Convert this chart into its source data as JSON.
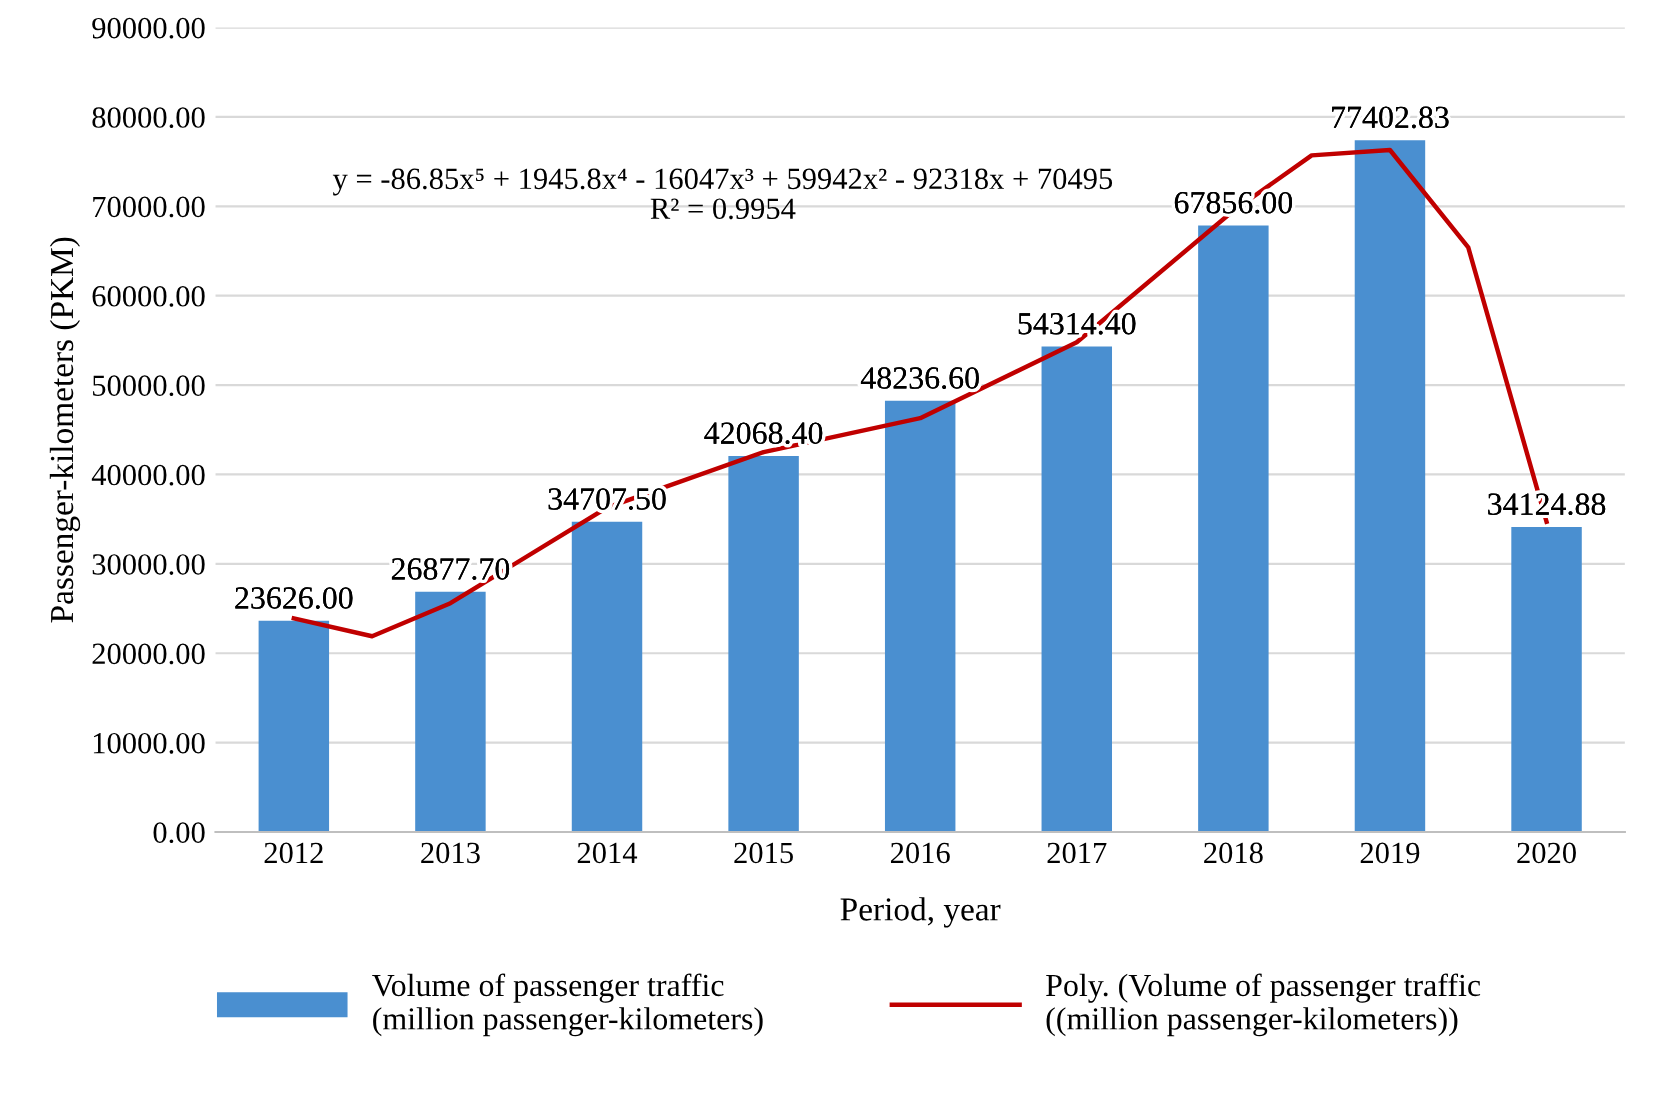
{
  "chart_data": {
    "type": "bar",
    "xlabel": "Period, year",
    "ylabel": "Passenger-kilometers (PKM)",
    "x": [
      2012,
      2013,
      2014,
      2015,
      2016,
      2017,
      2018,
      2019,
      2020
    ],
    "xlim": [
      2011.5,
      2020.5
    ],
    "xticks": [
      2012,
      2013,
      2014,
      2015,
      2016,
      2017,
      2018,
      2019,
      2020
    ],
    "ylim": [
      0,
      90000
    ],
    "yticks": [
      {
        "value": 0,
        "label": "0.00"
      },
      {
        "value": 10000,
        "label": "10000.00"
      },
      {
        "value": 20000,
        "label": "20000.00"
      },
      {
        "value": 30000,
        "label": "30000.00"
      },
      {
        "value": 40000,
        "label": "40000.00"
      },
      {
        "value": 50000,
        "label": "50000.00"
      },
      {
        "value": 60000,
        "label": "60000.00"
      },
      {
        "value": 70000,
        "label": "70000.00"
      },
      {
        "value": 80000,
        "label": "80000.00"
      },
      {
        "value": 90000,
        "label": "90000.00"
      }
    ],
    "grid": "y",
    "legend": "bottom",
    "series": [
      {
        "name": "Volume of passenger traffic\n(million passenger-kilometers)",
        "color": "#4a8fd0",
        "values": [
          23626.0,
          26877.7,
          34707.5,
          42068.4,
          48236.6,
          54314.4,
          67856.0,
          77402.83,
          34124.88
        ],
        "value_labels": [
          "23626.00",
          "26877.70",
          "34707.50",
          "42068.40",
          "48236.60",
          "54314.40",
          "67856.00",
          "77402.83",
          "34124.88"
        ]
      },
      {
        "type": "line",
        "name": "Poly. (Volume of passenger traffic\n((million passenger-kilometers))",
        "color": "#c00000",
        "x": [
          2012,
          2012.5,
          2013,
          2014,
          2015,
          2016,
          2017,
          2018,
          2018.5,
          2019,
          2019.5,
          2020
        ],
        "values": [
          23900,
          21900,
          25600,
          36300,
          42500,
          46300,
          54800,
          69500,
          75700,
          76300,
          65400,
          34700
        ]
      }
    ],
    "annotations": [
      "y = -86.85x⁵ + 1945.8x⁴ - 16047x³ + 59942x² - 92318x + 70495\nR² = 0.9954"
    ]
  }
}
